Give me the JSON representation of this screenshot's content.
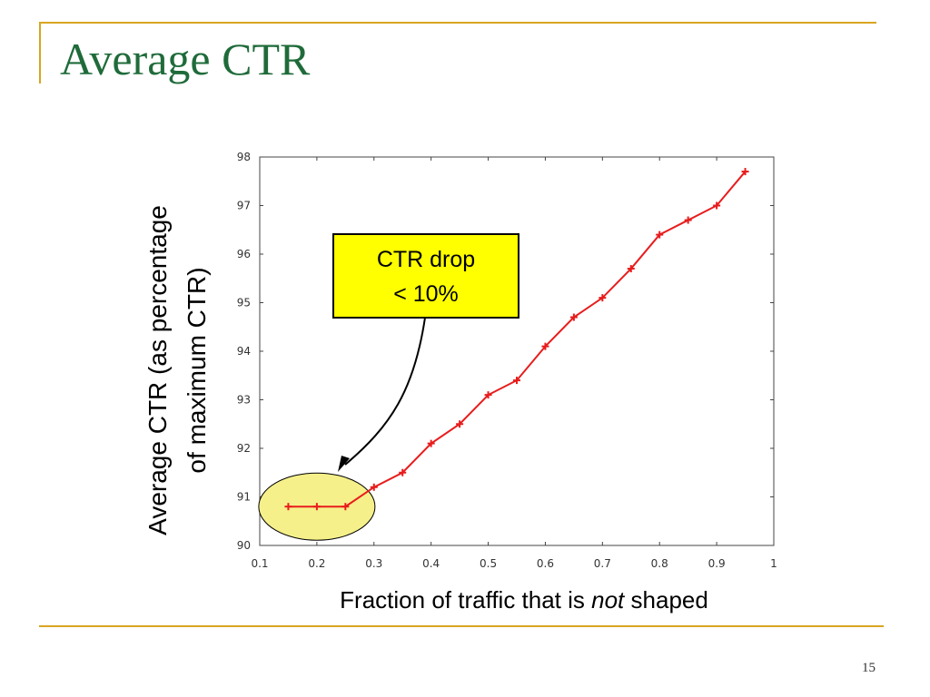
{
  "slide": {
    "title": "Average CTR",
    "page_number": "15"
  },
  "colors": {
    "accent_rule": "#d9a520",
    "title": "#1f6b3a",
    "series_line": "#e81c1c",
    "callout_box": "#ffff00",
    "highlight_ellipse": "#f5f08a"
  },
  "chart_data": {
    "type": "line",
    "xlabel_parts": [
      "Fraction of traffic that is ",
      "not",
      " shaped"
    ],
    "ylabel_lines": [
      "Average CTR (as percentage",
      "of maximum CTR)"
    ],
    "xlim": [
      0.1,
      1
    ],
    "ylim": [
      90,
      98
    ],
    "x_ticks": [
      "0.1",
      "0.2",
      "0.3",
      "0.4",
      "0.5",
      "0.6",
      "0.7",
      "0.8",
      "0.9",
      "1"
    ],
    "y_ticks": [
      "90",
      "91",
      "92",
      "93",
      "94",
      "95",
      "96",
      "97",
      "98"
    ],
    "grid": false,
    "series": [
      {
        "x": [
          0.15,
          0.2,
          0.25,
          0.3,
          0.35,
          0.4,
          0.45,
          0.5,
          0.55,
          0.6,
          0.65,
          0.7,
          0.75,
          0.8,
          0.85,
          0.9,
          0.95
        ],
        "y": [
          90.8,
          90.8,
          90.8,
          91.2,
          91.5,
          92.1,
          92.5,
          93.1,
          93.4,
          94.1,
          94.7,
          95.1,
          95.7,
          96.4,
          96.7,
          97.0,
          97.7
        ],
        "marker": "+"
      }
    ],
    "annotations": [
      {
        "lines": [
          "CTR drop",
          "< 10%"
        ],
        "highlights_x_range": [
          0.15,
          0.25
        ]
      }
    ]
  }
}
